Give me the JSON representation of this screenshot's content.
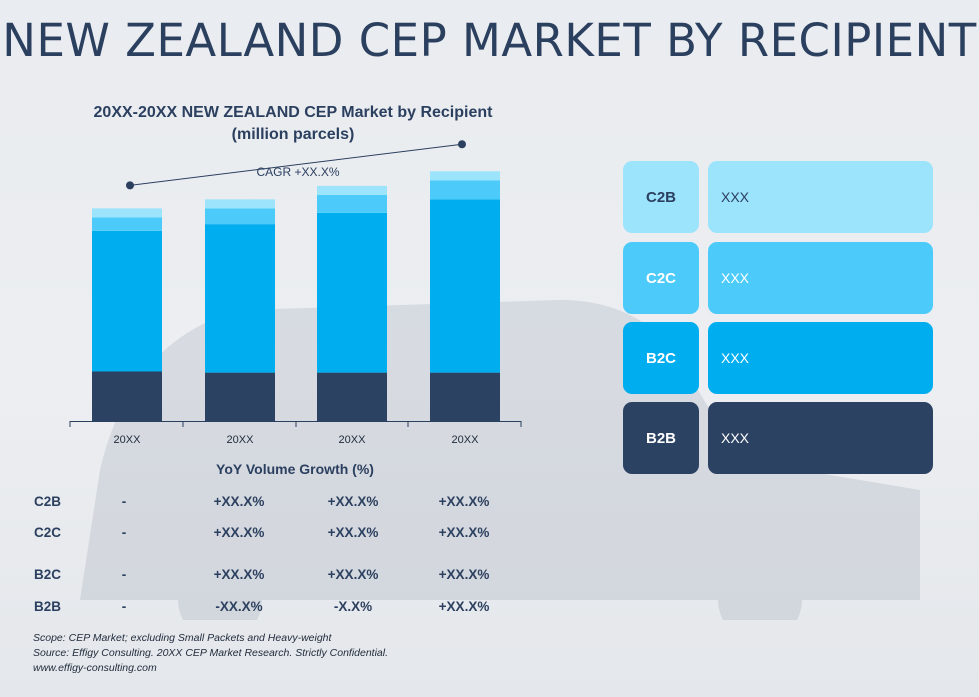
{
  "page_title": "NEW ZEALAND CEP MARKET BY RECIPIENT",
  "chart_data": {
    "type": "bar",
    "stacked": true,
    "title_line1": "20XX-20XX NEW ZEALAND CEP Market by Recipient",
    "title_line2": "(million parcels)",
    "categories": [
      "20XX",
      "20XX",
      "20XX",
      "20XX"
    ],
    "series": [
      {
        "name": "B2B",
        "color": "#2c4262",
        "values": [
          44,
          43,
          43,
          43
        ]
      },
      {
        "name": "B2C",
        "color": "#00adef",
        "values": [
          125,
          132,
          142,
          154
        ]
      },
      {
        "name": "C2C",
        "color": "#4ccbfb",
        "values": [
          12,
          14,
          16,
          17
        ]
      },
      {
        "name": "C2B",
        "color": "#9ce3fc",
        "values": [
          8,
          8,
          8,
          8
        ]
      }
    ],
    "ylim": [
      0,
      240
    ],
    "grid": false,
    "annotation": "CAGR +XX.X%"
  },
  "yoy": {
    "title": "YoY Volume Growth (%)",
    "rows": [
      {
        "label": "C2B",
        "values": [
          "-",
          "+XX.X%",
          "+XX.X%",
          "+XX.X%"
        ]
      },
      {
        "label": "C2C",
        "values": [
          "-",
          "+XX.X%",
          "+XX.X%",
          "+XX.X%"
        ]
      },
      {
        "label": "B2C",
        "values": [
          "-",
          "+XX.X%",
          "+XX.X%",
          "+XX.X%"
        ]
      },
      {
        "label": "B2B",
        "values": [
          "-",
          "-XX.X%",
          "-X.X%",
          "+XX.X%"
        ]
      }
    ]
  },
  "legend": [
    {
      "key": "C2B",
      "value": "XXX",
      "bg": "#9ce3fc",
      "val_bg": "#9ce3fc",
      "text_color": "#2b3f5f"
    },
    {
      "key": "C2C",
      "value": "XXX",
      "bg": "#4ccbfb",
      "val_bg": "#4ccbfb",
      "text_color": "#ffffff"
    },
    {
      "key": "B2C",
      "value": "XXX",
      "bg": "#00adef",
      "val_bg": "#00adef",
      "text_color": "#ffffff"
    },
    {
      "key": "B2B",
      "value": "XXX",
      "bg": "#2c4262",
      "val_bg": "#2c4262",
      "text_color": "#ffffff"
    }
  ],
  "footnotes": {
    "scope": "Scope: CEP Market; excluding Small Packets and Heavy-weight",
    "source": "Source: Effigy Consulting. 20XX CEP Market Research. Strictly Confidential.",
    "url": "www.effigy-consulting.com"
  }
}
